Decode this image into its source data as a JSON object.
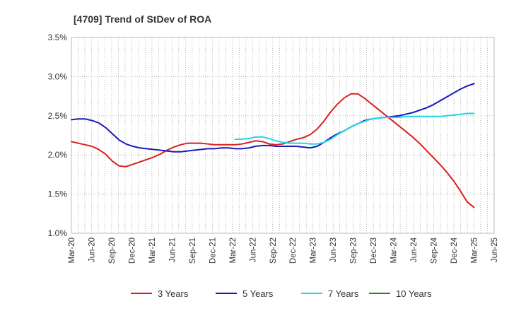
{
  "chart_data": {
    "type": "line",
    "title": "[4709]  Trend of StDev of ROA",
    "xlabel": "",
    "ylabel": "",
    "ylim": [
      1.0,
      3.5
    ],
    "y_ticks": [
      "1.0%",
      "1.5%",
      "2.0%",
      "2.5%",
      "3.0%",
      "3.5%"
    ],
    "x_ticks": [
      "Mar-20",
      "Jun-20",
      "Sep-20",
      "Dec-20",
      "Mar-21",
      "Jun-21",
      "Sep-21",
      "Dec-21",
      "Mar-22",
      "Jun-22",
      "Sep-22",
      "Dec-22",
      "Mar-23",
      "Jun-23",
      "Sep-23",
      "Dec-23",
      "Mar-24",
      "Jun-24",
      "Sep-24",
      "Dec-24",
      "Mar-25",
      "Jun-25"
    ],
    "grid": true,
    "legend_position": "bottom",
    "series": [
      {
        "name": "3 Years",
        "color": "#dd1f1f",
        "values": [
          2.17,
          2.15,
          2.13,
          2.11,
          2.07,
          2.01,
          1.92,
          1.86,
          1.85,
          1.88,
          1.91,
          1.94,
          1.97,
          2.01,
          2.06,
          2.1,
          2.13,
          2.15,
          2.15,
          2.15,
          2.14,
          2.13,
          2.13,
          2.13,
          2.13,
          2.14,
          2.16,
          2.18,
          2.17,
          2.14,
          2.13,
          2.14,
          2.17,
          2.2,
          2.22,
          2.26,
          2.33,
          2.43,
          2.55,
          2.65,
          2.73,
          2.78,
          2.78,
          2.72,
          2.65,
          2.58,
          2.51,
          2.44,
          2.37,
          2.3,
          2.23,
          2.15,
          2.06,
          1.97,
          1.88,
          1.78,
          1.67,
          1.54,
          1.4,
          1.33
        ]
      },
      {
        "name": "5 Years",
        "color": "#1a1ab8",
        "values": [
          2.45,
          2.46,
          2.46,
          2.44,
          2.41,
          2.35,
          2.27,
          2.19,
          2.14,
          2.11,
          2.09,
          2.08,
          2.07,
          2.06,
          2.05,
          2.04,
          2.04,
          2.05,
          2.06,
          2.07,
          2.08,
          2.08,
          2.09,
          2.09,
          2.08,
          2.08,
          2.09,
          2.11,
          2.12,
          2.12,
          2.11,
          2.11,
          2.11,
          2.11,
          2.1,
          2.09,
          2.11,
          2.16,
          2.22,
          2.27,
          2.31,
          2.36,
          2.4,
          2.44,
          2.46,
          2.47,
          2.48,
          2.49,
          2.5,
          2.52,
          2.54,
          2.57,
          2.6,
          2.64,
          2.69,
          2.74,
          2.79,
          2.84,
          2.88,
          2.91
        ]
      },
      {
        "name": "7 Years",
        "color": "#22d4e8",
        "values": [
          null,
          null,
          null,
          null,
          null,
          null,
          null,
          null,
          null,
          null,
          null,
          null,
          null,
          null,
          null,
          null,
          null,
          null,
          null,
          null,
          null,
          null,
          null,
          null,
          2.2,
          2.2,
          2.21,
          2.23,
          2.23,
          2.21,
          2.18,
          2.16,
          2.15,
          2.15,
          2.15,
          2.14,
          2.14,
          2.16,
          2.2,
          2.26,
          2.31,
          2.36,
          2.4,
          2.43,
          2.46,
          2.47,
          2.48,
          2.48,
          2.48,
          2.49,
          2.49,
          2.49,
          2.49,
          2.49,
          2.49,
          2.5,
          2.51,
          2.52,
          2.53,
          2.53
        ]
      },
      {
        "name": "10 Years",
        "color": "#1e8a1e",
        "values": []
      }
    ]
  }
}
